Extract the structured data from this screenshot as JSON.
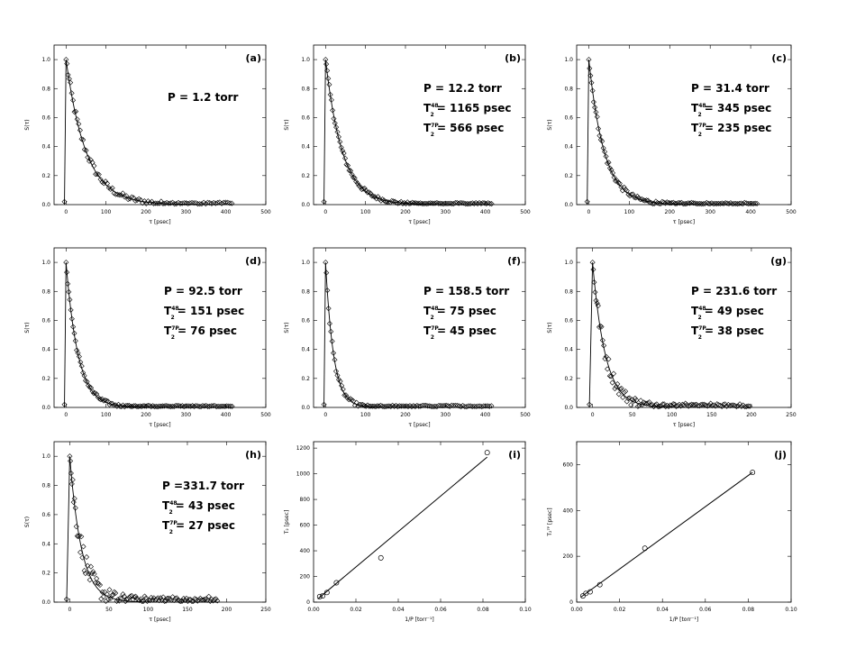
{
  "chart_data": [
    {
      "id": "a",
      "type": "scatter",
      "label": "(a)",
      "xlabel": "τ [psec]",
      "ylabel": "S(τ)",
      "xlim": [
        -30,
        500
      ],
      "ylim": [
        0,
        1.1
      ],
      "xticks": [
        0,
        100,
        200,
        300,
        400,
        500
      ],
      "yticks": [
        0.0,
        0.2,
        0.4,
        0.6,
        0.8,
        1.0
      ],
      "annotations": [
        {
          "main": "P = 1.2 torr"
        }
      ],
      "decay_time_psec": 50,
      "noise": 0.015,
      "series": [
        {
          "name": "measured",
          "x_range": [
            0,
            420
          ],
          "n_points": 95
        },
        {
          "name": "fit",
          "x_range": [
            0,
            420
          ]
        }
      ]
    },
    {
      "id": "b",
      "type": "scatter",
      "label": "(b)",
      "xlabel": "τ [psec]",
      "ylabel": "S(τ)",
      "xlim": [
        -30,
        500
      ],
      "ylim": [
        0,
        1.1
      ],
      "xticks": [
        0,
        100,
        200,
        300,
        400,
        500
      ],
      "yticks": [
        0.0,
        0.2,
        0.4,
        0.6,
        0.8,
        1.0
      ],
      "annotations": [
        {
          "main": "P = 12.2 torr"
        },
        {
          "main": "T",
          "sub": "2",
          "sup": "48",
          "rest": "= 1165 psec"
        },
        {
          "main": "T",
          "sub": "2",
          "sup": "7P",
          "rest": "= 566 psec"
        }
      ],
      "decay_time_psec": 42,
      "noise": 0.01,
      "series": [
        {
          "name": "measured",
          "x_range": [
            0,
            420
          ],
          "n_points": 110
        },
        {
          "name": "fit",
          "x_range": [
            0,
            420
          ]
        }
      ]
    },
    {
      "id": "c",
      "type": "scatter",
      "label": "(c)",
      "xlabel": "τ [psec]",
      "ylabel": "S(τ)",
      "xlim": [
        -30,
        500
      ],
      "ylim": [
        0,
        1.1
      ],
      "xticks": [
        0,
        100,
        200,
        300,
        400,
        500
      ],
      "yticks": [
        0.0,
        0.2,
        0.4,
        0.6,
        0.8,
        1.0
      ],
      "annotations": [
        {
          "main": "P = 31.4 torr"
        },
        {
          "main": "T",
          "sub": "2",
          "sup": "48",
          "rest": "= 345 psec"
        },
        {
          "main": "T",
          "sub": "2",
          "sup": "7P",
          "rest": "= 235 psec"
        }
      ],
      "decay_time_psec": 38,
      "noise": 0.012,
      "series": [
        {
          "name": "measured",
          "x_range": [
            0,
            420
          ],
          "n_points": 110
        },
        {
          "name": "fit",
          "x_range": [
            0,
            420
          ]
        }
      ]
    },
    {
      "id": "d",
      "type": "scatter",
      "label": "(d)",
      "xlabel": "τ [psec]",
      "ylabel": "S(τ)",
      "xlim": [
        -30,
        500
      ],
      "ylim": [
        0,
        1.1
      ],
      "xticks": [
        0,
        100,
        200,
        300,
        400,
        500
      ],
      "yticks": [
        0.0,
        0.2,
        0.4,
        0.6,
        0.8,
        1.0
      ],
      "annotations": [
        {
          "main": "P = 92.5 torr"
        },
        {
          "main": "T",
          "sub": "2",
          "sup": "48",
          "rest": "=  151 psec"
        },
        {
          "main": "T",
          "sub": "2",
          "sup": "7P",
          "rest": "=  76 psec"
        }
      ],
      "decay_time_psec": 30,
      "noise": 0.01,
      "series": [
        {
          "name": "measured",
          "x_range": [
            0,
            420
          ],
          "n_points": 110
        },
        {
          "name": "fit",
          "x_range": [
            0,
            420
          ]
        }
      ]
    },
    {
      "id": "f",
      "type": "scatter",
      "label": "(f)",
      "xlabel": "τ [psec]",
      "ylabel": "S(τ)",
      "xlim": [
        -30,
        500
      ],
      "ylim": [
        0,
        1.1
      ],
      "xticks": [
        0,
        100,
        200,
        300,
        400,
        500
      ],
      "yticks": [
        0.0,
        0.2,
        0.4,
        0.6,
        0.8,
        1.0
      ],
      "annotations": [
        {
          "main": "P = 158.5 torr"
        },
        {
          "main": "T",
          "sub": "2",
          "sup": "48",
          "rest": "= 75 psec"
        },
        {
          "main": "T",
          "sub": "2",
          "sup": "7P",
          "rest": "= 45 psec"
        }
      ],
      "decay_time_psec": 20,
      "noise": 0.012,
      "series": [
        {
          "name": "measured",
          "x_range": [
            0,
            420
          ],
          "n_points": 100
        },
        {
          "name": "fit",
          "x_range": [
            0,
            420
          ]
        }
      ]
    },
    {
      "id": "g",
      "type": "scatter",
      "label": "(g)",
      "xlabel": "τ [psec]",
      "ylabel": "S(τ)",
      "xlim": [
        -20,
        250
      ],
      "ylim": [
        0,
        1.1
      ],
      "xticks": [
        0,
        50,
        100,
        150,
        200,
        250
      ],
      "yticks": [
        0.0,
        0.2,
        0.4,
        0.6,
        0.8,
        1.0
      ],
      "annotations": [
        {
          "main": "P = 231.6 torr"
        },
        {
          "main": "T",
          "sub": "2",
          "sup": "48",
          "rest": "= 49 psec"
        },
        {
          "main": "T",
          "sub": "2",
          "sup": "7P",
          "rest": "= 38 psec"
        }
      ],
      "decay_time_psec": 16,
      "noise": 0.03,
      "series": [
        {
          "name": "measured",
          "x_range": [
            0,
            200
          ],
          "n_points": 110
        },
        {
          "name": "fit",
          "x_range": [
            0,
            200
          ]
        }
      ]
    },
    {
      "id": "h",
      "type": "scatter",
      "label": "(h)",
      "xlabel": "τ [psec]",
      "ylabel": "S(τ)",
      "xlim": [
        -20,
        250
      ],
      "ylim": [
        0,
        1.1
      ],
      "xticks": [
        0,
        50,
        100,
        150,
        200,
        250
      ],
      "yticks": [
        0.0,
        0.2,
        0.4,
        0.6,
        0.8,
        1.0
      ],
      "annotations": [
        {
          "main": "P =331.7 torr"
        },
        {
          "main": "T",
          "sub": "2",
          "sup": "48",
          "rest": "= 43 psec"
        },
        {
          "main": "T",
          "sub": "2",
          "sup": "7P",
          "rest": "= 27 psec"
        }
      ],
      "decay_time_psec": 15,
      "noise": 0.045,
      "series": [
        {
          "name": "measured",
          "x_range": [
            0,
            190
          ],
          "n_points": 120
        },
        {
          "name": "fit",
          "x_range": [
            0,
            190
          ]
        }
      ]
    },
    {
      "id": "i",
      "type": "scatter",
      "label": "(i)",
      "xlabel": "1/P  [torr⁻¹]",
      "ylabel": "T₂ [psec]",
      "xlim": [
        0,
        0.1
      ],
      "ylim": [
        0,
        1250
      ],
      "xticks": [
        0,
        0.02,
        0.04,
        0.06,
        0.08,
        0.1
      ],
      "xtick_labels": [
        "0.00",
        "0.02",
        "0.04",
        "0.06",
        "0.08",
        "0.10"
      ],
      "yticks": [
        0,
        200,
        400,
        600,
        800,
        1000,
        1200
      ],
      "points": [
        [
          0.0029,
          43
        ],
        [
          0.0043,
          49
        ],
        [
          0.0063,
          75
        ],
        [
          0.0108,
          151
        ],
        [
          0.0318,
          345
        ],
        [
          0.082,
          1165
        ]
      ],
      "fit": {
        "x": [
          0.002,
          0.082
        ],
        "y": [
          25,
          1130
        ]
      }
    },
    {
      "id": "j",
      "type": "scatter",
      "label": "(j)",
      "xlabel": "1/P  [torr⁻¹]",
      "ylabel": "T₂⁷ᴾ [psec]",
      "xlim": [
        0,
        0.1
      ],
      "ylim": [
        0,
        700
      ],
      "xticks": [
        0,
        0.02,
        0.04,
        0.06,
        0.08,
        0.1
      ],
      "xtick_labels": [
        "0.00",
        "0.02",
        "0.04",
        "0.06",
        "0.08",
        "0.10"
      ],
      "yticks": [
        0,
        200,
        400,
        600
      ],
      "points": [
        [
          0.0029,
          27
        ],
        [
          0.0043,
          38
        ],
        [
          0.0063,
          45
        ],
        [
          0.0108,
          76
        ],
        [
          0.0318,
          235
        ],
        [
          0.082,
          566
        ]
      ],
      "fit": {
        "x": [
          0.002,
          0.082
        ],
        "y": [
          22,
          566
        ]
      }
    }
  ]
}
